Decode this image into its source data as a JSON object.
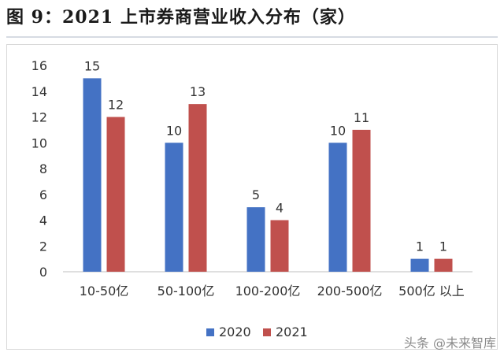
{
  "page": {
    "title": "图 9：2021 上市券商营业收入分布（家）",
    "watermark": "头条 @未来智库"
  },
  "colors": {
    "series_2020": "#4472C4",
    "series_2021": "#C0504D",
    "axis": "#bfbfbf"
  },
  "chart_data": {
    "type": "bar",
    "categories": [
      "10-50亿",
      "50-100亿",
      "100-200亿",
      "200-500亿",
      "500亿 以上"
    ],
    "series": [
      {
        "name": "2020",
        "values": [
          15,
          10,
          5,
          10,
          1
        ]
      },
      {
        "name": "2021",
        "values": [
          12,
          13,
          4,
          11,
          1
        ]
      }
    ],
    "ylim": [
      0,
      16
    ],
    "yticks": [
      0,
      2,
      4,
      6,
      8,
      10,
      12,
      14,
      16
    ],
    "grid": false,
    "legend_position": "bottom"
  }
}
